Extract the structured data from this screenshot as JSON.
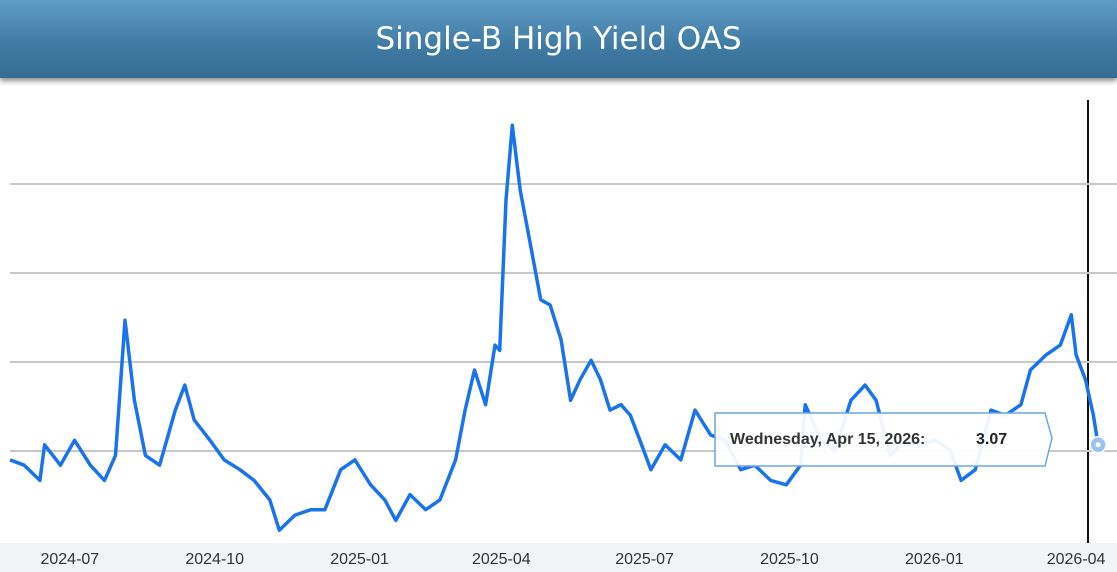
{
  "chart_data": {
    "type": "line",
    "title": "Single-B High Yield OAS",
    "x": [
      "2024-05-24",
      "2024-06-02",
      "2024-06-12",
      "2024-06-15",
      "2024-06-25",
      "2024-07-04",
      "2024-07-14",
      "2024-07-23",
      "2024-07-30",
      "2024-08-05",
      "2024-08-11",
      "2024-08-18",
      "2024-08-27",
      "2024-09-06",
      "2024-09-12",
      "2024-09-18",
      "2024-09-28",
      "2024-10-07",
      "2024-10-17",
      "2024-10-26",
      "2024-11-05",
      "2024-11-11",
      "2024-11-21",
      "2024-12-01",
      "2024-12-10",
      "2024-12-20",
      "2024-12-29",
      "2025-01-08",
      "2025-01-17",
      "2025-01-24",
      "2025-02-02",
      "2025-02-12",
      "2025-02-21",
      "2025-03-03",
      "2025-03-09",
      "2025-03-15",
      "2025-03-22",
      "2025-03-28",
      "2025-03-31",
      "2025-04-04",
      "2025-04-08",
      "2025-04-13",
      "2025-04-19",
      "2025-04-26",
      "2025-05-02",
      "2025-05-09",
      "2025-05-15",
      "2025-05-21",
      "2025-05-28",
      "2025-06-03",
      "2025-06-09",
      "2025-06-16",
      "2025-06-22",
      "2025-06-28",
      "2025-07-05",
      "2025-07-14",
      "2025-07-24",
      "2025-08-02",
      "2025-08-12",
      "2025-08-21",
      "2025-08-31",
      "2025-09-09",
      "2025-09-19",
      "2025-09-29",
      "2025-10-08",
      "2025-10-11",
      "2025-10-21",
      "2025-10-30",
      "2025-11-09",
      "2025-11-18",
      "2025-11-25",
      "2025-12-04",
      "2025-12-14",
      "2025-12-23",
      "2026-01-02",
      "2026-01-11",
      "2026-01-18",
      "2026-01-27",
      "2026-02-06",
      "2026-02-15",
      "2026-02-25",
      "2026-03-03",
      "2026-03-13",
      "2026-03-22",
      "2026-03-29",
      "2026-04-01",
      "2026-04-07",
      "2026-04-12",
      "2026-04-15"
    ],
    "values": [
      2.9,
      2.84,
      2.67,
      3.07,
      2.84,
      3.12,
      2.84,
      2.67,
      2.95,
      4.47,
      3.57,
      2.95,
      2.84,
      3.46,
      3.74,
      3.35,
      3.12,
      2.9,
      2.79,
      2.67,
      2.45,
      2.11,
      2.28,
      2.34,
      2.34,
      2.79,
      2.9,
      2.62,
      2.45,
      2.22,
      2.51,
      2.34,
      2.45,
      2.9,
      3.46,
      3.91,
      3.52,
      4.19,
      4.13,
      5.82,
      6.66,
      5.93,
      5.37,
      4.7,
      4.64,
      4.25,
      3.57,
      3.8,
      4.02,
      3.8,
      3.46,
      3.52,
      3.4,
      3.12,
      2.79,
      3.07,
      2.9,
      3.46,
      3.18,
      3.12,
      2.79,
      2.84,
      2.67,
      2.62,
      2.84,
      3.52,
      3.12,
      3.01,
      3.57,
      3.74,
      3.57,
      2.95,
      3.12,
      3.07,
      3.12,
      3.01,
      2.67,
      2.79,
      3.46,
      3.4,
      3.52,
      3.91,
      4.08,
      4.19,
      4.53,
      4.08,
      3.8,
      3.4,
      3.07
    ],
    "color": "#1a73e8",
    "xlim": [
      "2024-05-24",
      "2026-04-27"
    ],
    "xticks": [
      {
        "value": "2024-07-01",
        "label": "2024-07"
      },
      {
        "value": "2024-10-01",
        "label": "2024-10"
      },
      {
        "value": "2025-01-01",
        "label": "2025-01"
      },
      {
        "value": "2025-04-01",
        "label": "2025-04"
      },
      {
        "value": "2025-07-01",
        "label": "2025-07"
      },
      {
        "value": "2025-10-01",
        "label": "2025-10"
      },
      {
        "value": "2026-01-01",
        "label": "2026-01"
      },
      {
        "value": "2026-04-01",
        "label": "2026-04"
      }
    ],
    "ylim": [
      2,
      7
    ],
    "yticks": [
      3,
      4,
      5,
      6
    ],
    "grid": true,
    "tooltip": {
      "label": "Wednesday, Apr 15, 2026:"
    }
  }
}
